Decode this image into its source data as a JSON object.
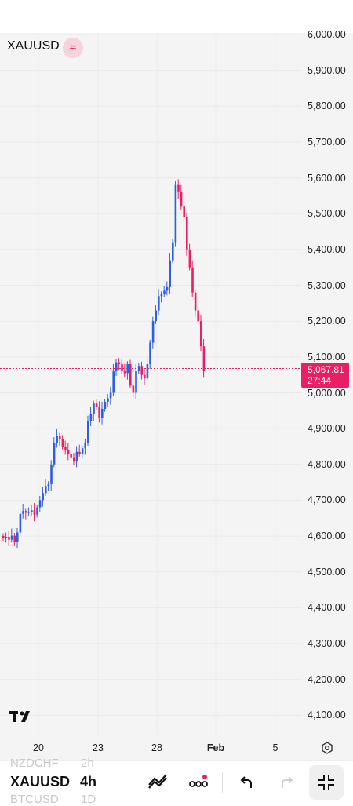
{
  "symbol": "XAUUSD",
  "interval": "4h",
  "price_axis": [
    "6,000.00",
    "5,900.00",
    "5,800.00",
    "5,700.00",
    "5,600.00",
    "5,500.00",
    "5,400.00",
    "5,300.00",
    "5,200.00",
    "5,100.00",
    "5,000.00",
    "4,900.00",
    "4,800.00",
    "4,700.00",
    "4,600.00",
    "4,500.00",
    "4,400.00",
    "4,300.00",
    "4,200.00",
    "4,100.00"
  ],
  "last_price": "5,067.81",
  "countdown": "27:44",
  "time_axis": [
    "20",
    "23",
    "28",
    "Feb",
    "5"
  ],
  "picker_ghost": {
    "above_symbol": "NZDCHF",
    "above_interval": "2h",
    "below_symbol": "BTCUSD",
    "below_interval": "1D"
  },
  "colors": {
    "up": "#2e5fe0",
    "down": "#e91e63",
    "accent": "#e91e63"
  },
  "icons": [
    "wave-icon",
    "tradingview-logo-icon",
    "settings-icon",
    "drawing-tools-icon",
    "more-icon",
    "undo-icon",
    "redo-icon",
    "collapse-fullscreen-icon"
  ]
}
